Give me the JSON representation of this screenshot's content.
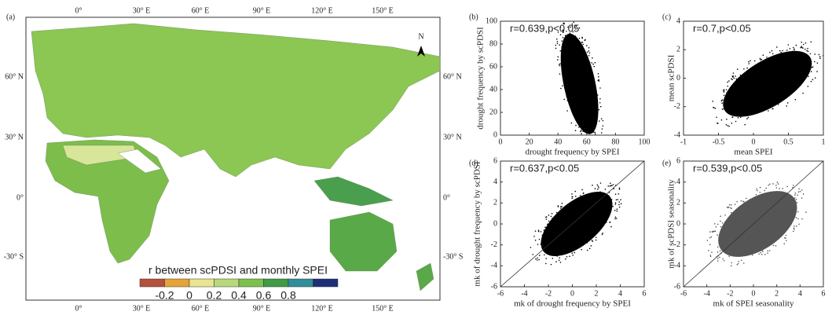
{
  "map": {
    "panel_label": "(a)",
    "top_ticks": [
      "0°",
      "30° E",
      "60° E",
      "90° E",
      "120° E",
      "150° E"
    ],
    "bottom_ticks": [
      "0°",
      "30° E",
      "60° E",
      "90° E",
      "120° E",
      "150° E"
    ],
    "left_ticks": [
      "60° N",
      "30° N",
      "0°",
      "-30° S"
    ],
    "right_ticks": [
      "60° N",
      "30° N",
      "0°",
      "-30° S"
    ],
    "north_label": "N",
    "colorbar": {
      "title": "r between scPDSI and monthly SPEI",
      "colors": [
        "#b5503a",
        "#e6a336",
        "#e9e48f",
        "#b8d87a",
        "#7cc14e",
        "#3f9b45",
        "#2f8f9a",
        "#1d2f78"
      ],
      "ticks": [
        -0.2,
        0,
        0.2,
        0.4,
        0.6,
        0.8
      ]
    }
  },
  "chart_data": [
    {
      "type": "scatter",
      "panel_label": "(b)",
      "annotation": "r=0.639,p<0.05",
      "color": "#000000",
      "x_label": "drought frequency by SPEI",
      "y_label": "drought frequency by scPDSI",
      "xlim": [
        0,
        100
      ],
      "xticks": [
        0,
        20,
        40,
        60,
        80,
        100
      ],
      "ylim": [
        0,
        100
      ],
      "yticks": [
        0,
        20,
        40,
        60,
        80,
        100
      ],
      "diagonal": false
    },
    {
      "type": "scatter",
      "panel_label": "(c)",
      "annotation": "r=0.7,p<0.05",
      "color": "#000000",
      "x_label": "mean SPEI",
      "y_label": "mean scPDSI",
      "xlim": [
        -1,
        1
      ],
      "xticks": [
        -1,
        -0.5,
        0,
        0.5,
        1
      ],
      "ylim": [
        -4,
        4
      ],
      "yticks": [
        -4,
        -2,
        0,
        2,
        4
      ],
      "diagonal": false
    },
    {
      "type": "scatter",
      "panel_label": "(d)",
      "annotation": "r=0.637,p<0.05",
      "color": "#000000",
      "x_label": "mk of drought frequency by SPEI",
      "y_label": "mk of drought frequency by scPDSI",
      "xlim": [
        -6,
        6
      ],
      "xticks": [
        -6,
        -4,
        -2,
        0,
        2,
        4,
        6
      ],
      "ylim": [
        -6,
        6
      ],
      "yticks": [
        -6,
        -4,
        -2,
        0,
        2,
        4,
        6
      ],
      "diagonal": true
    },
    {
      "type": "scatter",
      "panel_label": "(e)",
      "annotation": "r=0.539,p<0.05",
      "color": "#555555",
      "x_label": "mk of SPEI seasonality",
      "y_label": "mk of scPDSI seasonality",
      "xlim": [
        -6,
        6
      ],
      "xticks": [
        -6,
        -4,
        -2,
        0,
        2,
        4,
        6
      ],
      "ylim": [
        -6,
        6
      ],
      "yticks": [
        -6,
        -4,
        -2,
        0,
        2,
        4,
        6
      ],
      "diagonal": true
    }
  ]
}
